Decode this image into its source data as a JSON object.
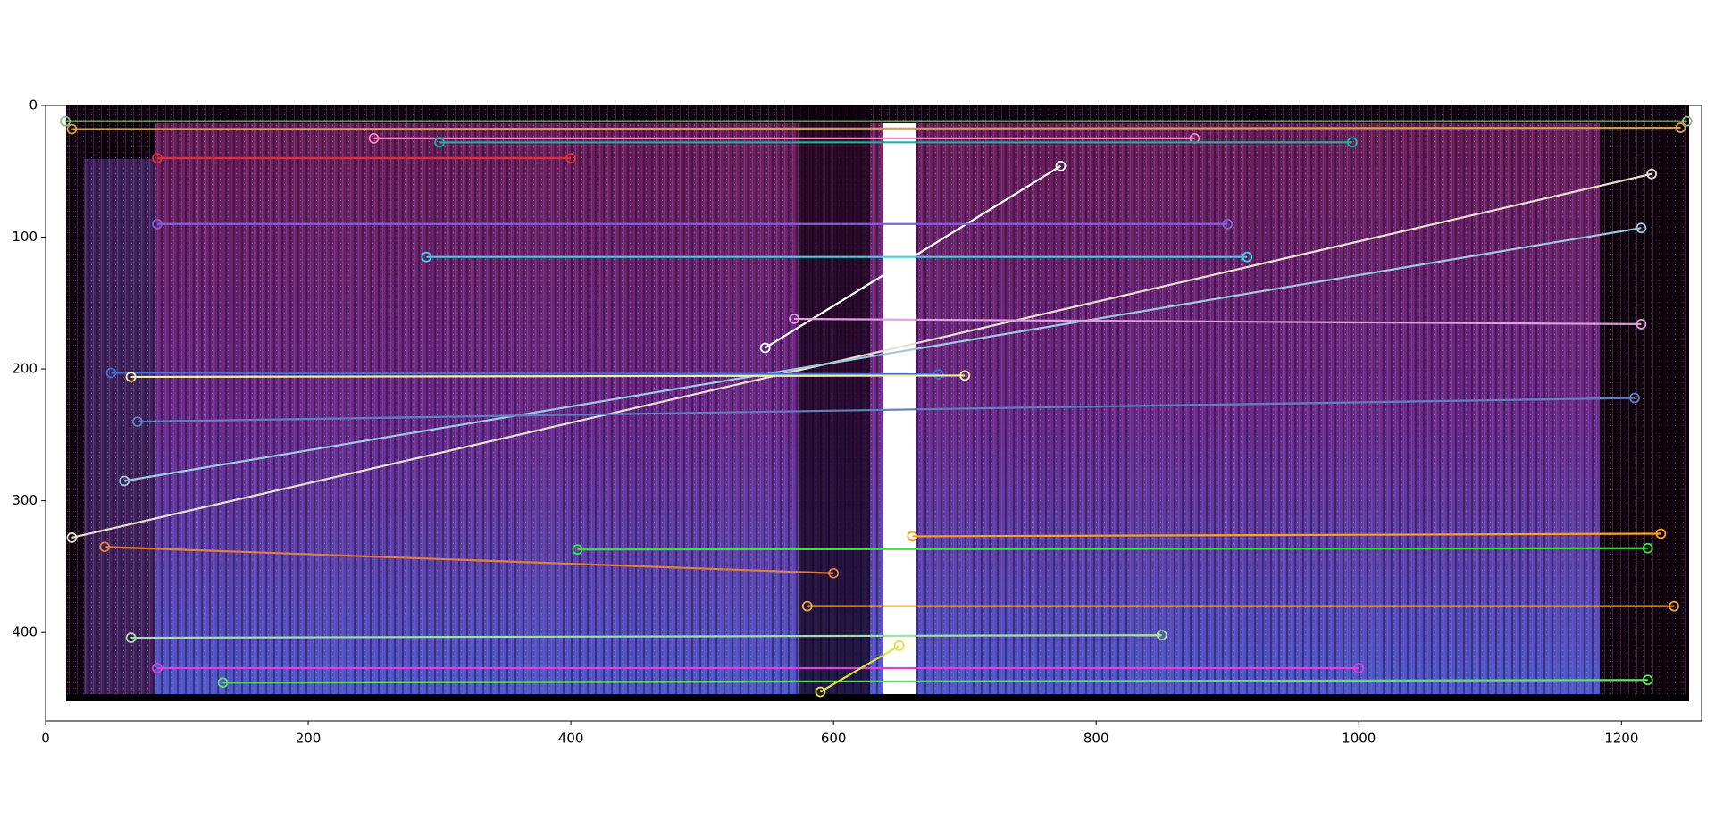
{
  "chart_data": {
    "type": "image",
    "xlim": [
      0,
      1261
    ],
    "ylim": [
      467,
      0
    ],
    "xticks": [
      0,
      200,
      400,
      600,
      800,
      1000,
      1200
    ],
    "yticks": [
      0,
      100,
      200,
      300,
      400
    ],
    "matches": [
      {
        "x": [
          15,
          1250
        ],
        "y": [
          12,
          12
        ],
        "color": "#8fbc8f"
      },
      {
        "x": [
          20,
          1245
        ],
        "y": [
          18,
          17
        ],
        "color": "#d4a04a"
      },
      {
        "x": [
          20,
          1223
        ],
        "y": [
          328,
          52
        ],
        "color": "#e8e0d0"
      },
      {
        "x": [
          548,
          773
        ],
        "y": [
          184,
          46
        ],
        "color": "#ffffff"
      },
      {
        "x": [
          60,
          1215
        ],
        "y": [
          285,
          93
        ],
        "color": "#a0c8e0"
      },
      {
        "x": [
          45,
          600
        ],
        "y": [
          335,
          355
        ],
        "color": "#e08040"
      },
      {
        "x": [
          405,
          1220
        ],
        "y": [
          337,
          336
        ],
        "color": "#40e040"
      },
      {
        "x": [
          50,
          680
        ],
        "y": [
          203,
          204
        ],
        "color": "#4070d0"
      },
      {
        "x": [
          65,
          700
        ],
        "y": [
          206,
          205
        ],
        "color": "#f0f0a0"
      },
      {
        "x": [
          70,
          1210
        ],
        "y": [
          240,
          222
        ],
        "color": "#6080c0"
      },
      {
        "x": [
          85,
          1000
        ],
        "y": [
          427,
          427
        ],
        "color": "#e040e0"
      },
      {
        "x": [
          250,
          875
        ],
        "y": [
          25,
          25
        ],
        "color": "#ff80c0"
      },
      {
        "x": [
          65,
          850
        ],
        "y": [
          404,
          402
        ],
        "color": "#a0e0a0"
      },
      {
        "x": [
          135,
          1220
        ],
        "y": [
          438,
          436
        ],
        "color": "#60e060"
      },
      {
        "x": [
          590,
          650
        ],
        "y": [
          445,
          410
        ],
        "color": "#e0e040"
      },
      {
        "x": [
          660,
          1230
        ],
        "y": [
          327,
          325
        ],
        "color": "#ffa020"
      },
      {
        "x": [
          300,
          995
        ],
        "y": [
          28,
          28
        ],
        "color": "#20b0a0"
      },
      {
        "x": [
          580,
          1240
        ],
        "y": [
          380,
          380
        ],
        "color": "#f0a040"
      },
      {
        "x": [
          85,
          900
        ],
        "y": [
          90,
          90
        ],
        "color": "#8060e0"
      },
      {
        "x": [
          85,
          400
        ],
        "y": [
          40,
          40
        ],
        "color": "#e03030"
      },
      {
        "x": [
          290,
          915
        ],
        "y": [
          115,
          115
        ],
        "color": "#40d0e0"
      },
      {
        "x": [
          570,
          1215
        ],
        "y": [
          162,
          166
        ],
        "color": "#e0a0e0"
      }
    ]
  }
}
